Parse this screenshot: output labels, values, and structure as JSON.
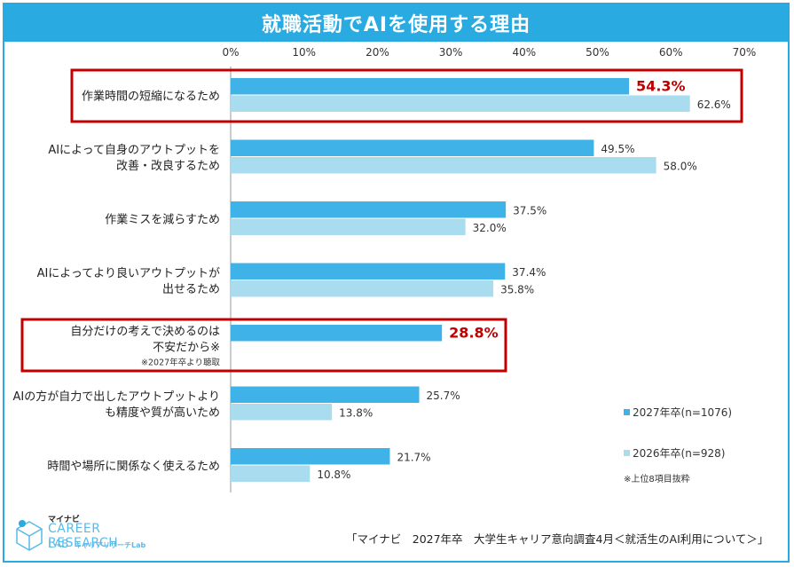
{
  "title": "就職活動でAIを使用する理由",
  "colors": {
    "series_2027": "#3fb3e8",
    "series_2026": "#aadcf0",
    "highlight": "#c00000",
    "accent": "#29abe2"
  },
  "legend": {
    "items": [
      "2027年卒(n=1076)",
      "2026年卒(n=928)"
    ],
    "note": "※上位8項目抜粋"
  },
  "source": "「マイナビ　2027年卒　大学生キャリア意向調査4月＜就活生のAI利用について＞」",
  "logo": {
    "top": "マイナビ",
    "main": "CAREER RESEARCH",
    "lab": "LAB",
    "sub": "キャリアリサーチLab"
  },
  "chart_data": {
    "type": "bar",
    "orientation": "horizontal",
    "title": "就職活動でAIを使用する理由",
    "xlim": [
      0,
      70
    ],
    "x_ticks": [
      "0%",
      "10%",
      "20%",
      "30%",
      "40%",
      "50%",
      "60%",
      "70%"
    ],
    "categories": [
      {
        "lines": [
          "作業時間の短縮になるため"
        ],
        "highlight": true
      },
      {
        "lines": [
          "AIによって自身のアウトプットを",
          "改善・改良するため"
        ],
        "highlight": false
      },
      {
        "lines": [
          "作業ミスを減らすため"
        ],
        "highlight": false
      },
      {
        "lines": [
          "AIによってより良いアウトプットが",
          "出せるため"
        ],
        "highlight": false
      },
      {
        "lines": [
          "自分だけの考えで決めるのは",
          "不安だから※"
        ],
        "note": "※2027年卒より聴取",
        "highlight": true
      },
      {
        "lines": [
          "AIの方が自力で出したアウトプットより",
          "も精度や質が高いため"
        ],
        "highlight": false
      },
      {
        "lines": [
          "時間や場所に関係なく使えるため"
        ],
        "highlight": false
      }
    ],
    "series": [
      {
        "name": "2027年卒(n=1076)",
        "values": [
          54.3,
          49.5,
          37.5,
          37.4,
          28.8,
          25.7,
          21.7
        ],
        "labels": [
          "54.3%",
          "49.5%",
          "37.5%",
          "37.4%",
          "28.8%",
          "25.7%",
          "21.7%"
        ]
      },
      {
        "name": "2026年卒(n=928)",
        "values": [
          62.6,
          58.0,
          32.0,
          35.8,
          null,
          13.8,
          10.8
        ],
        "labels": [
          "62.6%",
          "58.0%",
          "32.0%",
          "35.8%",
          null,
          "13.8%",
          "10.8%"
        ]
      }
    ]
  }
}
